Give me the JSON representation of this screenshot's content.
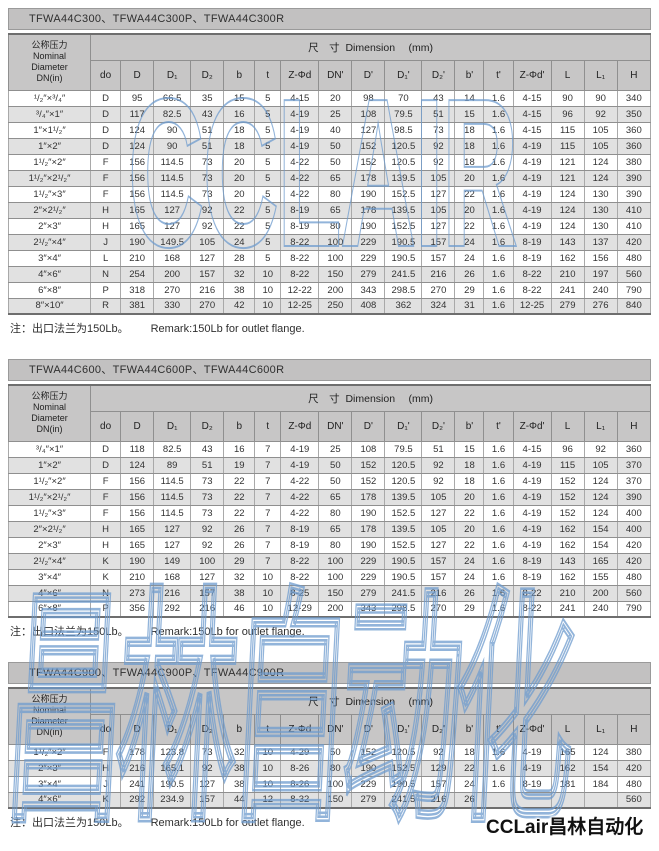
{
  "watermarks": {
    "outline_top": "CCLAIR",
    "outline_bottom": "昌林自动化",
    "corner": "CCLair昌林自动化",
    "outline_color": "#6e9bcd"
  },
  "header_labels": {
    "nominal": "公称压力\nNominal\nDiameter\nDN(in)",
    "dimension": "尺　寸  Dimension　 (mm)",
    "columns": [
      "do",
      "D",
      "D₁",
      "D₂",
      "b",
      "t",
      "Z-Φd",
      "DN'",
      "D'",
      "D₁'",
      "D₂'",
      "b'",
      "t'",
      "Z-Φd'",
      "L",
      "L₁",
      "H"
    ]
  },
  "tables": [
    {
      "title": "TFWA44C300、TFWA44C300P、TFWA44C300R",
      "note_cn": "注：出口法兰为150Lb。",
      "note_en": "Remark:150Lb for outlet flange.",
      "rows": [
        [
          "¹/₂″×³/₄″",
          "D",
          "95",
          "66.5",
          "35",
          "15",
          "5",
          "4-15",
          "20",
          "98",
          "70",
          "43",
          "14",
          "1.6",
          "4-15",
          "90",
          "90",
          "340"
        ],
        [
          "³/₄″×1″",
          "D",
          "117",
          "82.5",
          "43",
          "16",
          "5",
          "4-19",
          "25",
          "108",
          "79.5",
          "51",
          "15",
          "1.6",
          "4-15",
          "96",
          "92",
          "350"
        ],
        [
          "1″×1¹/₂″",
          "D",
          "124",
          "90",
          "51",
          "18",
          "5",
          "4-19",
          "40",
          "127",
          "98.5",
          "73",
          "18",
          "1.6",
          "4-15",
          "115",
          "105",
          "360"
        ],
        [
          "1″×2″",
          "D",
          "124",
          "90",
          "51",
          "18",
          "5",
          "4-19",
          "50",
          "152",
          "120.5",
          "92",
          "18",
          "1.6",
          "4-19",
          "115",
          "105",
          "360"
        ],
        [
          "1¹/₂″×2″",
          "F",
          "156",
          "114.5",
          "73",
          "20",
          "5",
          "4-22",
          "50",
          "152",
          "120.5",
          "92",
          "18",
          "1.6",
          "4-19",
          "121",
          "124",
          "380"
        ],
        [
          "1¹/₂″×2¹/₂″",
          "F",
          "156",
          "114.5",
          "73",
          "20",
          "5",
          "4-22",
          "65",
          "178",
          "139.5",
          "105",
          "20",
          "1.6",
          "4-19",
          "121",
          "124",
          "390"
        ],
        [
          "1¹/₂″×3″",
          "F",
          "156",
          "114.5",
          "73",
          "20",
          "5",
          "4-22",
          "80",
          "190",
          "152.5",
          "127",
          "22",
          "1.6",
          "4-19",
          "124",
          "130",
          "390"
        ],
        [
          "2″×2¹/₂″",
          "H",
          "165",
          "127",
          "92",
          "22",
          "5",
          "8-19",
          "65",
          "178",
          "139.5",
          "105",
          "20",
          "1.6",
          "4-19",
          "124",
          "130",
          "410"
        ],
        [
          "2″×3″",
          "H",
          "165",
          "127",
          "92",
          "22",
          "5",
          "8-19",
          "80",
          "190",
          "152.5",
          "127",
          "22",
          "1.6",
          "4-19",
          "124",
          "130",
          "410"
        ],
        [
          "2¹/₂″×4″",
          "J",
          "190",
          "149.5",
          "105",
          "24",
          "5",
          "8-22",
          "100",
          "229",
          "190.5",
          "157",
          "24",
          "1.6",
          "8-19",
          "143",
          "137",
          "420"
        ],
        [
          "3″×4″",
          "L",
          "210",
          "168",
          "127",
          "28",
          "5",
          "8-22",
          "100",
          "229",
          "190.5",
          "157",
          "24",
          "1.6",
          "8-19",
          "162",
          "156",
          "480"
        ],
        [
          "4″×6″",
          "N",
          "254",
          "200",
          "157",
          "32",
          "10",
          "8-22",
          "150",
          "279",
          "241.5",
          "216",
          "26",
          "1.6",
          "8-22",
          "210",
          "197",
          "560"
        ],
        [
          "6″×8″",
          "P",
          "318",
          "270",
          "216",
          "38",
          "10",
          "12-22",
          "200",
          "343",
          "298.5",
          "270",
          "29",
          "1.6",
          "8-22",
          "241",
          "240",
          "790"
        ],
        [
          "8″×10″",
          "R",
          "381",
          "330",
          "270",
          "42",
          "10",
          "12-25",
          "250",
          "408",
          "362",
          "324",
          "31",
          "1.6",
          "12-25",
          "279",
          "276",
          "840"
        ]
      ]
    },
    {
      "title": "TFWA44C600、TFWA44C600P、TFWA44C600R",
      "note_cn": "注：出口法兰为150Lb。",
      "note_en": "Remark:150Lb for outlet flange.",
      "rows": [
        [
          "³/₄″×1″",
          "D",
          "118",
          "82.5",
          "43",
          "16",
          "7",
          "4-19",
          "25",
          "108",
          "79.5",
          "51",
          "15",
          "1.6",
          "4-15",
          "96",
          "92",
          "360"
        ],
        [
          "1″×2″",
          "D",
          "124",
          "89",
          "51",
          "19",
          "7",
          "4-19",
          "50",
          "152",
          "120.5",
          "92",
          "18",
          "1.6",
          "4-19",
          "115",
          "105",
          "370"
        ],
        [
          "1¹/₂″×2″",
          "F",
          "156",
          "114.5",
          "73",
          "22",
          "7",
          "4-22",
          "50",
          "152",
          "120.5",
          "92",
          "18",
          "1.6",
          "4-19",
          "152",
          "124",
          "370"
        ],
        [
          "1¹/₂″×2¹/₂″",
          "F",
          "156",
          "114.5",
          "73",
          "22",
          "7",
          "4-22",
          "65",
          "178",
          "139.5",
          "105",
          "20",
          "1.6",
          "4-19",
          "152",
          "124",
          "390"
        ],
        [
          "1¹/₂″×3″",
          "F",
          "156",
          "114.5",
          "73",
          "22",
          "7",
          "4-22",
          "80",
          "190",
          "152.5",
          "127",
          "22",
          "1.6",
          "4-19",
          "152",
          "124",
          "400"
        ],
        [
          "2″×2¹/₂″",
          "H",
          "165",
          "127",
          "92",
          "26",
          "7",
          "8-19",
          "65",
          "178",
          "139.5",
          "105",
          "20",
          "1.6",
          "4-19",
          "162",
          "154",
          "400"
        ],
        [
          "2″×3″",
          "H",
          "165",
          "127",
          "92",
          "26",
          "7",
          "8-19",
          "80",
          "190",
          "152.5",
          "127",
          "22",
          "1.6",
          "4-19",
          "162",
          "154",
          "420"
        ],
        [
          "2¹/₂″×4″",
          "K",
          "190",
          "149",
          "100",
          "29",
          "7",
          "8-22",
          "100",
          "229",
          "190.5",
          "157",
          "24",
          "1.6",
          "8-19",
          "143",
          "165",
          "420"
        ],
        [
          "3″×4″",
          "K",
          "210",
          "168",
          "127",
          "32",
          "10",
          "8-22",
          "100",
          "229",
          "190.5",
          "157",
          "24",
          "1.6",
          "8-19",
          "162",
          "155",
          "480"
        ],
        [
          "4″×6″",
          "N",
          "273",
          "216",
          "157",
          "38",
          "10",
          "8-25",
          "150",
          "279",
          "241.5",
          "216",
          "26",
          "1.6",
          "8-22",
          "210",
          "200",
          "560"
        ],
        [
          "6″×8″",
          "P",
          "356",
          "292",
          "216",
          "46",
          "10",
          "12-29",
          "200",
          "343",
          "298.5",
          "270",
          "29",
          "1.6",
          "8-22",
          "241",
          "240",
          "790"
        ]
      ]
    },
    {
      "title": "TFWA44C900、TFWA44C900P、TFWA44C900R",
      "note_cn": "注：出口法兰为150Lb。",
      "note_en": "Remark:150Lb for outlet flange.",
      "rows": [
        [
          "1¹/₂″×2″",
          "F",
          "178",
          "123.8",
          "73",
          "32",
          "10",
          "4-29",
          "50",
          "152",
          "120.5",
          "92",
          "18",
          "1.6",
          "4-19",
          "165",
          "124",
          "380"
        ],
        [
          "2″×3″",
          "H",
          "216",
          "165.1",
          "92",
          "38",
          "10",
          "8-26",
          "80",
          "190",
          "152.5",
          "129",
          "22",
          "1.6",
          "4-19",
          "162",
          "154",
          "420"
        ],
        [
          "3″×4″",
          "J",
          "241",
          "190.5",
          "127",
          "38",
          "10",
          "8-26",
          "100",
          "229",
          "190.5",
          "157",
          "24",
          "1.6",
          "8-19",
          "181",
          "184",
          "480"
        ],
        [
          "4″×6″",
          "K",
          "292",
          "234.9",
          "157",
          "44",
          "12",
          "8-32",
          "150",
          "279",
          "241.5",
          "216",
          "26",
          "",
          "",
          "",
          "",
          "560"
        ]
      ]
    }
  ]
}
